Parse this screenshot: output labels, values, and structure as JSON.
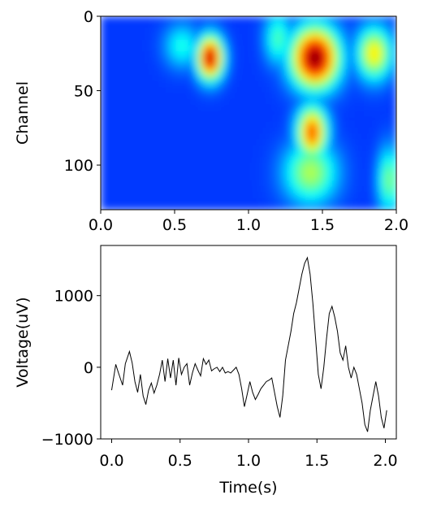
{
  "chart_data": [
    {
      "type": "heatmap",
      "title": "",
      "xlabel": "",
      "ylabel": "Channel",
      "xlim": [
        0.0,
        2.0
      ],
      "ylim": [
        0,
        130
      ],
      "y_inverted": true,
      "colormap": "jet",
      "xticks": [
        "0.0",
        "0.5",
        "1.0",
        "1.5",
        "2.0"
      ],
      "yticks": [
        "0",
        "50",
        "100"
      ],
      "xtick_values": [
        0.0,
        0.5,
        1.0,
        1.5,
        2.0
      ],
      "ytick_values": [
        0,
        50,
        100
      ],
      "background_level": 0.18,
      "hotspots": [
        {
          "t": 0.74,
          "ch": 28,
          "level": 0.95,
          "t_spread": 0.06,
          "ch_spread": 10
        },
        {
          "t": 1.45,
          "ch": 28,
          "level": 1.0,
          "t_spread": 0.11,
          "ch_spread": 14
        },
        {
          "t": 1.43,
          "ch": 78,
          "level": 0.8,
          "t_spread": 0.07,
          "ch_spread": 12
        },
        {
          "t": 1.42,
          "ch": 105,
          "level": 0.55,
          "t_spread": 0.12,
          "ch_spread": 14
        },
        {
          "t": 1.85,
          "ch": 25,
          "level": 0.65,
          "t_spread": 0.08,
          "ch_spread": 12
        },
        {
          "t": 1.2,
          "ch": 15,
          "level": 0.45,
          "t_spread": 0.06,
          "ch_spread": 12
        },
        {
          "t": 0.55,
          "ch": 20,
          "level": 0.4,
          "t_spread": 0.08,
          "ch_spread": 10
        },
        {
          "t": 1.95,
          "ch": 110,
          "level": 0.5,
          "t_spread": 0.05,
          "ch_spread": 15
        }
      ]
    },
    {
      "type": "line",
      "title": "",
      "xlabel": "Time(s)",
      "ylabel": "Voltage(uV)",
      "xlim": [
        -0.08,
        2.08
      ],
      "ylim": [
        -1000,
        1700
      ],
      "xticks": [
        "0.0",
        "0.5",
        "1.0",
        "1.5",
        "2.0"
      ],
      "yticks": [
        "1000",
        "0",
        "−1000"
      ],
      "xtick_values": [
        0.0,
        0.5,
        1.0,
        1.5,
        2.0
      ],
      "ytick_values": [
        1000,
        0,
        -1000
      ],
      "series": [
        {
          "color": "#000000",
          "x": [
            0.0,
            0.03,
            0.05,
            0.08,
            0.1,
            0.13,
            0.15,
            0.17,
            0.19,
            0.21,
            0.23,
            0.25,
            0.27,
            0.29,
            0.31,
            0.33,
            0.35,
            0.37,
            0.39,
            0.41,
            0.43,
            0.45,
            0.47,
            0.49,
            0.51,
            0.53,
            0.55,
            0.57,
            0.59,
            0.61,
            0.63,
            0.65,
            0.67,
            0.69,
            0.71,
            0.73,
            0.75,
            0.77,
            0.79,
            0.81,
            0.83,
            0.85,
            0.87,
            0.89,
            0.91,
            0.93,
            0.95,
            0.97,
            0.99,
            1.01,
            1.03,
            1.05,
            1.07,
            1.09,
            1.11,
            1.13,
            1.15,
            1.17,
            1.19,
            1.21,
            1.23,
            1.25,
            1.27,
            1.29,
            1.31,
            1.33,
            1.35,
            1.37,
            1.39,
            1.41,
            1.43,
            1.45,
            1.47,
            1.49,
            1.51,
            1.53,
            1.55,
            1.57,
            1.59,
            1.61,
            1.63,
            1.65,
            1.67,
            1.69,
            1.71,
            1.73,
            1.75,
            1.77,
            1.79,
            1.81,
            1.83,
            1.85,
            1.87,
            1.89,
            1.91,
            1.93,
            1.95,
            1.97,
            1.99,
            2.01
          ],
          "y": [
            -320,
            40,
            -80,
            -250,
            50,
            220,
            60,
            -200,
            -350,
            -100,
            -400,
            -520,
            -320,
            -220,
            -360,
            -250,
            -100,
            100,
            -200,
            120,
            -150,
            100,
            -250,
            130,
            -100,
            0,
            50,
            -250,
            -80,
            50,
            -40,
            -120,
            120,
            40,
            100,
            -50,
            -20,
            0,
            -60,
            0,
            -80,
            -60,
            -80,
            -40,
            0,
            -100,
            -300,
            -550,
            -380,
            -200,
            -350,
            -450,
            -380,
            -300,
            -250,
            -200,
            -180,
            -150,
            -350,
            -550,
            -700,
            -400,
            100,
            300,
            500,
            750,
            900,
            1100,
            1300,
            1450,
            1530,
            1300,
            900,
            400,
            -100,
            -300,
            0,
            400,
            750,
            850,
            700,
            500,
            200,
            100,
            300,
            0,
            -150,
            0,
            -100,
            -300,
            -500,
            -800,
            -900,
            -600,
            -400,
            -200,
            -400,
            -700,
            -850,
            -600
          ]
        }
      ]
    }
  ]
}
